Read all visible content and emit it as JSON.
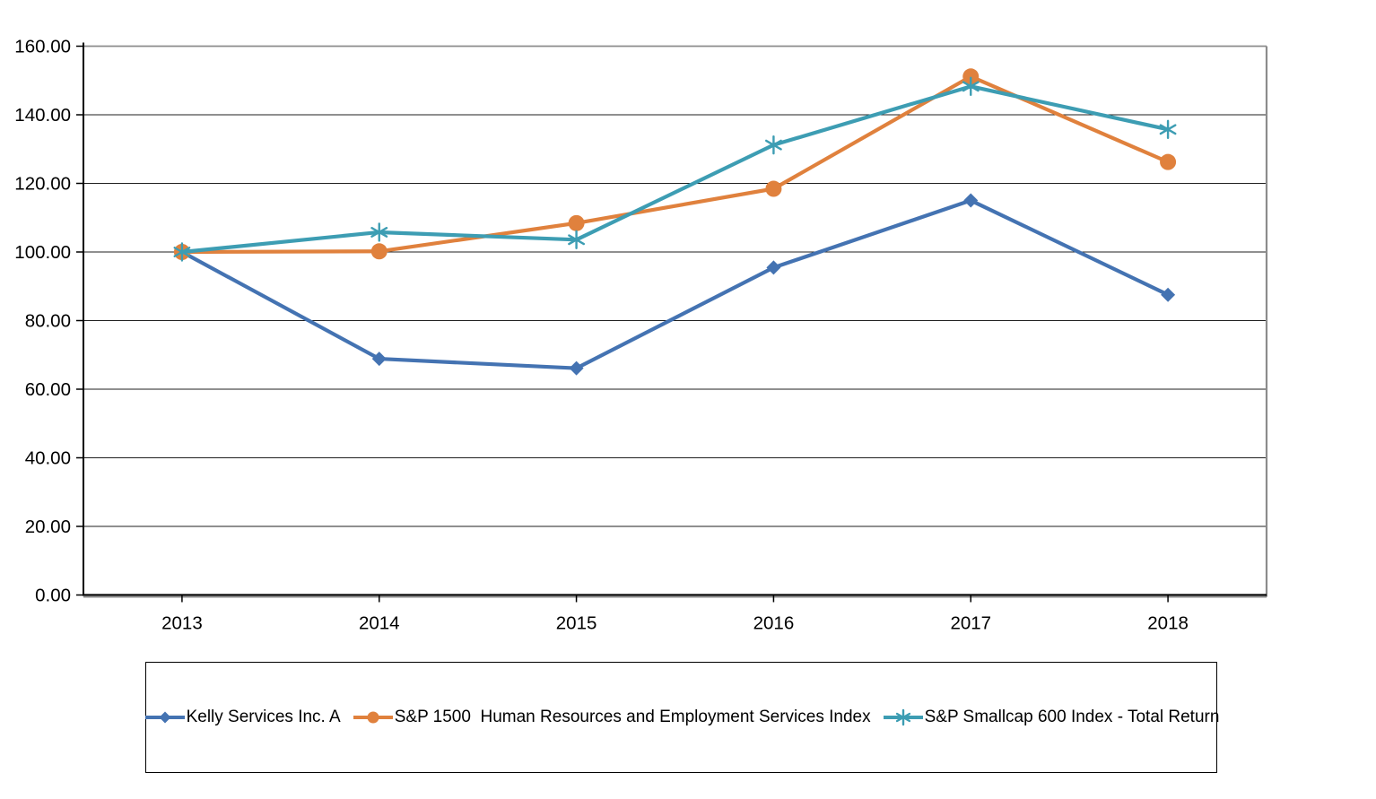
{
  "page": {
    "background": "#ffffff",
    "title": ""
  },
  "chart_data": {
    "type": "line",
    "title": "",
    "xlabel": "",
    "ylabel": "",
    "x": [
      "2013",
      "2014",
      "2015",
      "2016",
      "2017",
      "2018"
    ],
    "series": [
      {
        "name": "Kelly Services Inc. A",
        "marker": "diamond",
        "color": "#4473B2",
        "values": [
          100.0,
          68.87,
          66.11,
          95.45,
          115.02,
          87.53
        ]
      },
      {
        "name": "S&P 1500  Human Resources and Employment Services Index",
        "marker": "circle",
        "color": "#E0813D",
        "values": [
          100.0,
          100.19,
          108.41,
          118.43,
          151.17,
          126.24
        ]
      },
      {
        "name": "S&P Smallcap 600 Index - Total Return",
        "marker": "asterisk",
        "color": "#3D9DB3",
        "values": [
          100.0,
          105.76,
          103.58,
          131.2,
          148.28,
          135.73
        ]
      }
    ],
    "ylim": [
      0,
      160
    ],
    "ytick_step": 20,
    "y_tick_labels": [
      "0.00",
      "20.00",
      "40.00",
      "60.00",
      "80.00",
      "100.00",
      "120.00",
      "140.00",
      "160.00"
    ],
    "x_tick_labels": [
      "2013",
      "2014",
      "2015",
      "2016",
      "2017",
      "2018"
    ],
    "grid": true,
    "legend_position": "bottom-box",
    "colors": {
      "gridline": "#1f1f1f",
      "axis": "#000000",
      "plot_border": "#8c8c8c",
      "text": "#000000"
    }
  }
}
